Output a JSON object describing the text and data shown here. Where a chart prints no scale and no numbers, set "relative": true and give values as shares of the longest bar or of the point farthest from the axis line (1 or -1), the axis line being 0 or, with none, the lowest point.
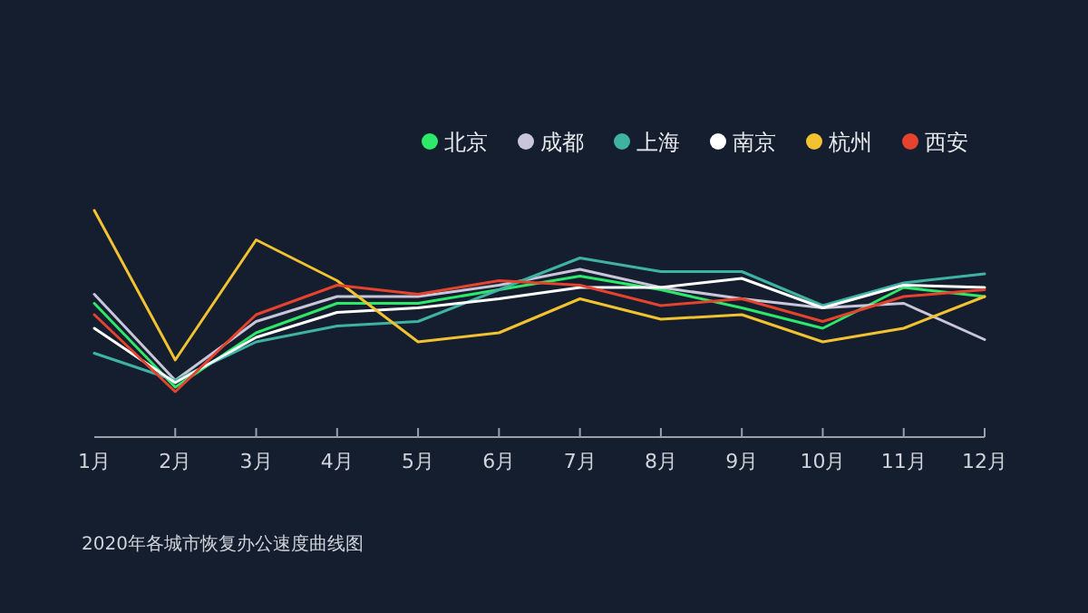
{
  "chart_data": {
    "type": "line",
    "relative": true,
    "legend": "top right",
    "annotations": [
      "2020年各城市恢复办公速度曲线图"
    ],
    "categories": [
      "1月",
      "2月",
      "3月",
      "4月",
      "5月",
      "6月",
      "7月",
      "8月",
      "9月",
      "10月",
      "11月",
      "12月"
    ],
    "series": [
      {
        "name": "北京",
        "color": "#2ee86a",
        "values": [
          0.59,
          0.22,
          0.46,
          0.59,
          0.59,
          0.65,
          0.71,
          0.65,
          0.57,
          0.48,
          0.66,
          0.62
        ]
      },
      {
        "name": "成都",
        "color": "#c8c6d8",
        "values": [
          0.63,
          0.25,
          0.51,
          0.62,
          0.62,
          0.67,
          0.74,
          0.66,
          0.61,
          0.57,
          0.59,
          0.43
        ]
      },
      {
        "name": "上海",
        "color": "#3fb3a2",
        "values": [
          0.37,
          0.25,
          0.42,
          0.49,
          0.51,
          0.65,
          0.79,
          0.73,
          0.73,
          0.58,
          0.68,
          0.72
        ]
      },
      {
        "name": "南京",
        "color": "#ffffff",
        "values": [
          0.48,
          0.24,
          0.44,
          0.55,
          0.57,
          0.61,
          0.66,
          0.66,
          0.7,
          0.57,
          0.67,
          0.66
        ]
      },
      {
        "name": "杭州",
        "color": "#f2c230",
        "values": [
          1,
          0.34,
          0.87,
          0.69,
          0.42,
          0.46,
          0.61,
          0.52,
          0.54,
          0.42,
          0.48,
          0.62
        ]
      },
      {
        "name": "西安",
        "color": "#e5432d",
        "values": [
          0.54,
          0.2,
          0.54,
          0.67,
          0.63,
          0.69,
          0.67,
          0.58,
          0.61,
          0.51,
          0.62,
          0.65
        ]
      }
    ]
  }
}
